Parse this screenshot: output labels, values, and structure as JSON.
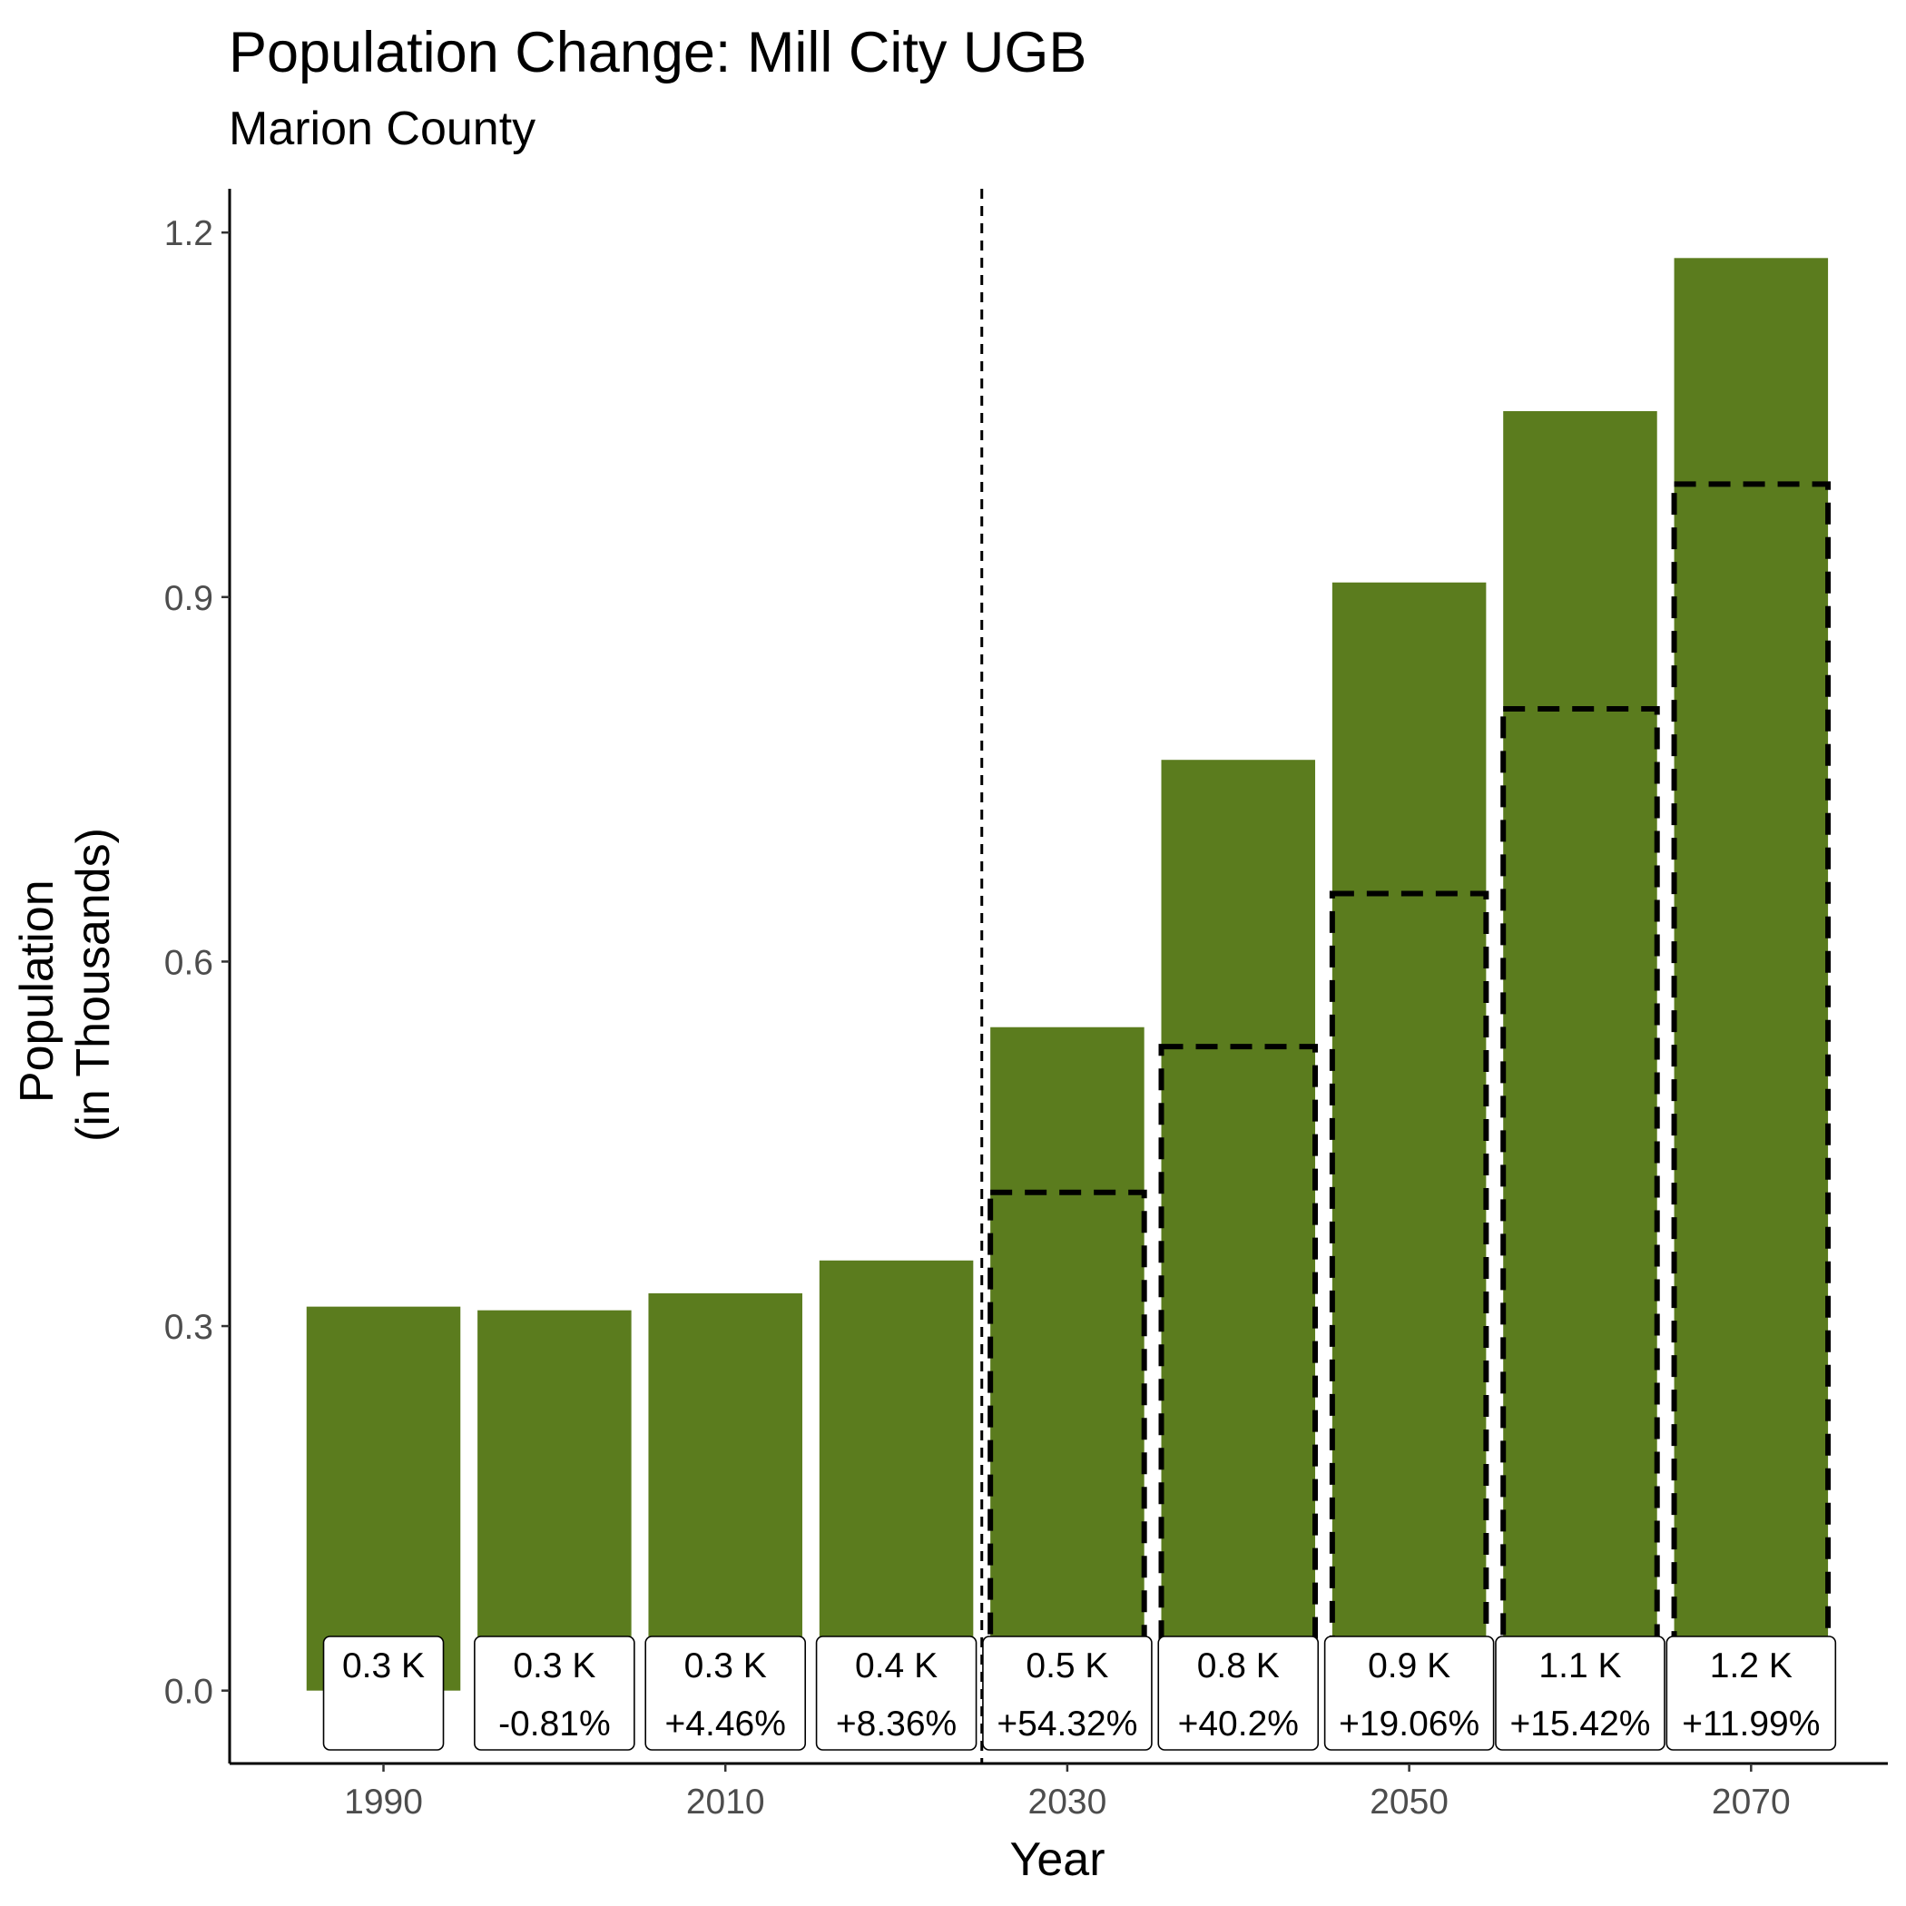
{
  "chart_data": {
    "type": "bar",
    "title": "Population Change: Mill City UGB",
    "subtitle": "Marion County",
    "xlabel": "Year",
    "ylabel": [
      "Population",
      "(in Thousands)"
    ],
    "ylim": [
      -0.06,
      1.236
    ],
    "yticks": [
      0.0,
      0.3,
      0.6,
      0.9,
      1.2
    ],
    "ytick_labels": [
      "0.0",
      "0.3",
      "0.6",
      "0.9",
      "1.2"
    ],
    "xlim": [
      1981,
      2078
    ],
    "xticks": [
      1990,
      2010,
      2030,
      2050,
      2070
    ],
    "xtick_labels": [
      "1990",
      "2010",
      "2030",
      "2050",
      "2070"
    ],
    "bar_color": "#5b7c1e",
    "forecast_divider_year": 2025,
    "grid": false,
    "legend": "none",
    "bars": [
      {
        "year": 1990,
        "value": 0.316,
        "dashed_outline": null,
        "label": "0.3 K",
        "change": ""
      },
      {
        "year": 2000,
        "value": 0.313,
        "dashed_outline": null,
        "label": "0.3 K",
        "change": "-0.81%"
      },
      {
        "year": 2010,
        "value": 0.327,
        "dashed_outline": null,
        "label": "0.3 K",
        "change": "+4.46%"
      },
      {
        "year": 2020,
        "value": 0.354,
        "dashed_outline": null,
        "label": "0.4 K",
        "change": "+8.36%"
      },
      {
        "year": 2030,
        "value": 0.546,
        "dashed_outline": 0.41,
        "label": "0.5 K",
        "change": "+54.32%"
      },
      {
        "year": 2040,
        "value": 0.766,
        "dashed_outline": 0.53,
        "label": "0.8 K",
        "change": "+40.2%"
      },
      {
        "year": 2050,
        "value": 0.912,
        "dashed_outline": 0.656,
        "label": "0.9 K",
        "change": "+19.06%"
      },
      {
        "year": 2060,
        "value": 1.053,
        "dashed_outline": 0.808,
        "label": "1.1 K",
        "change": "+15.42%"
      },
      {
        "year": 2070,
        "value": 1.179,
        "dashed_outline": 0.993,
        "label": "1.2 K",
        "change": "+11.99%"
      }
    ]
  }
}
